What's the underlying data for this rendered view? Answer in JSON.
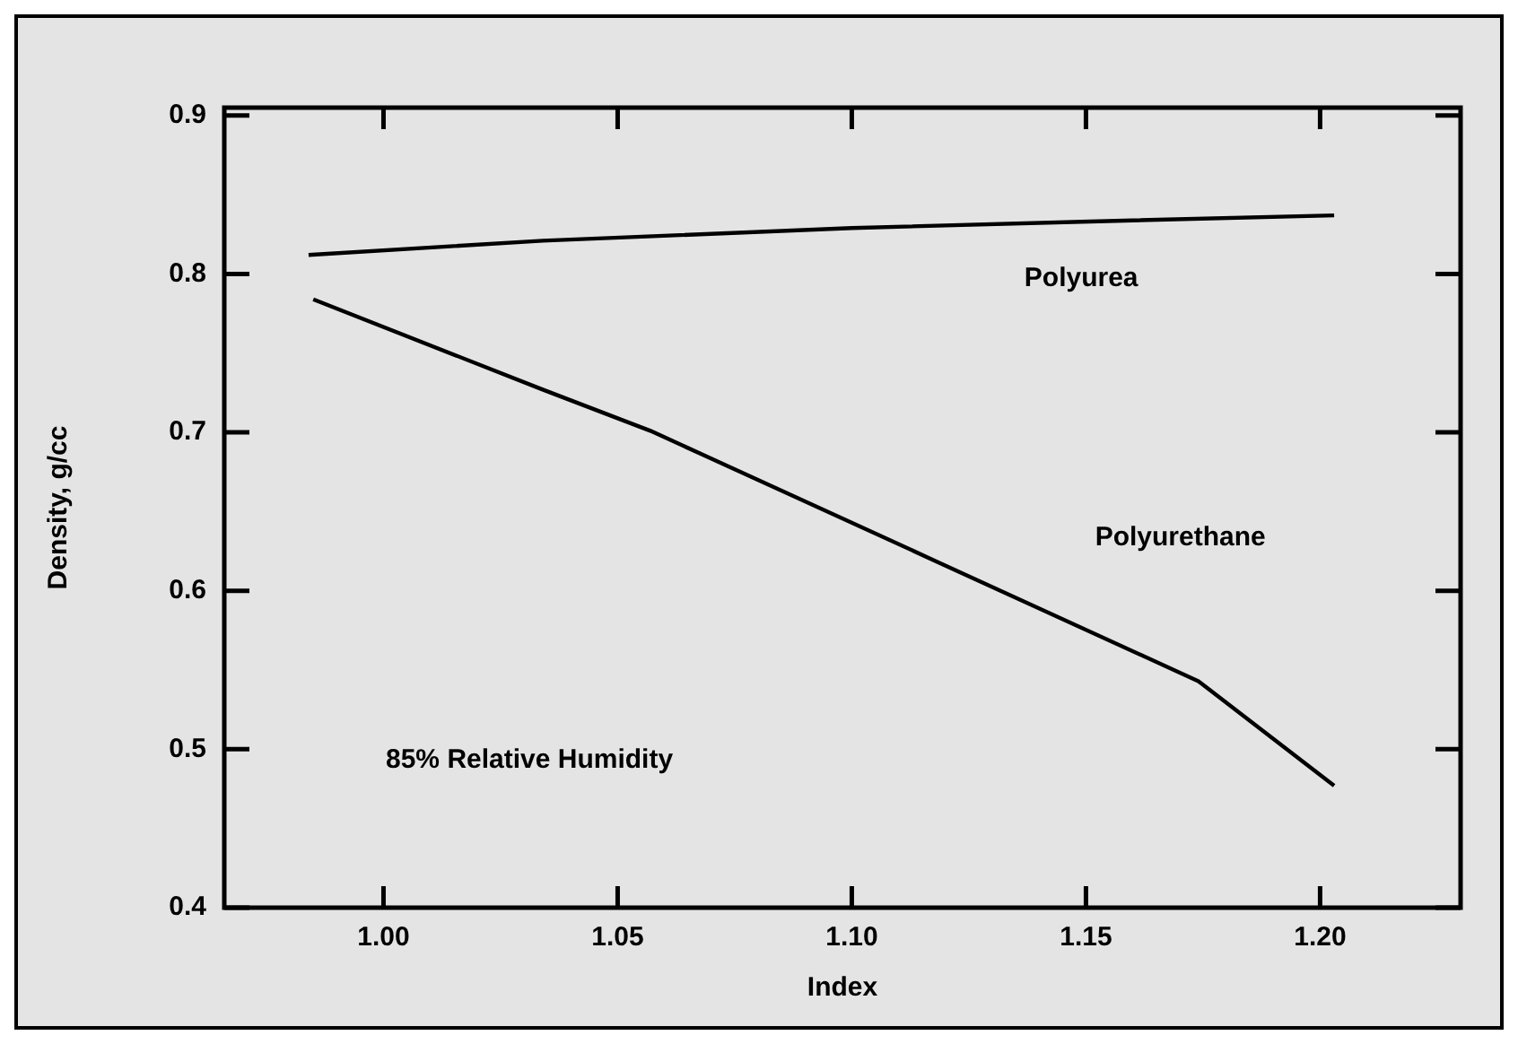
{
  "chart_data": {
    "type": "line",
    "xlabel": "Index",
    "ylabel": "Density, g/cc",
    "xlim": [
      0.966,
      1.23
    ],
    "xticks": [
      {
        "value": 1.0,
        "label": "1.00"
      },
      {
        "value": 1.05,
        "label": "1.05"
      },
      {
        "value": 1.1,
        "label": "1.10"
      },
      {
        "value": 1.15,
        "label": "1.15"
      },
      {
        "value": 1.2,
        "label": "1.20"
      }
    ],
    "ylim": [
      0.4,
      0.905
    ],
    "yticks": [
      0.4,
      0.5,
      0.6,
      0.7,
      0.8,
      0.9
    ],
    "series": [
      {
        "name": "Polyurea",
        "color": "#000000",
        "x": [
          0.984,
          1.034,
          1.1,
          1.149,
          1.203
        ],
        "values": [
          0.812,
          0.821,
          0.829,
          0.833,
          0.837
        ]
      },
      {
        "name": "Polyurethane",
        "color": "#000000",
        "x": [
          0.985,
          1.034,
          1.057,
          1.117,
          1.174,
          1.203
        ],
        "values": [
          0.784,
          0.727,
          0.701,
          0.62,
          0.543,
          0.477
        ]
      }
    ],
    "annotations": [
      "85% Relative Humidity"
    ],
    "grid": false,
    "legend": false,
    "marker": "none",
    "line_style": "solid"
  }
}
